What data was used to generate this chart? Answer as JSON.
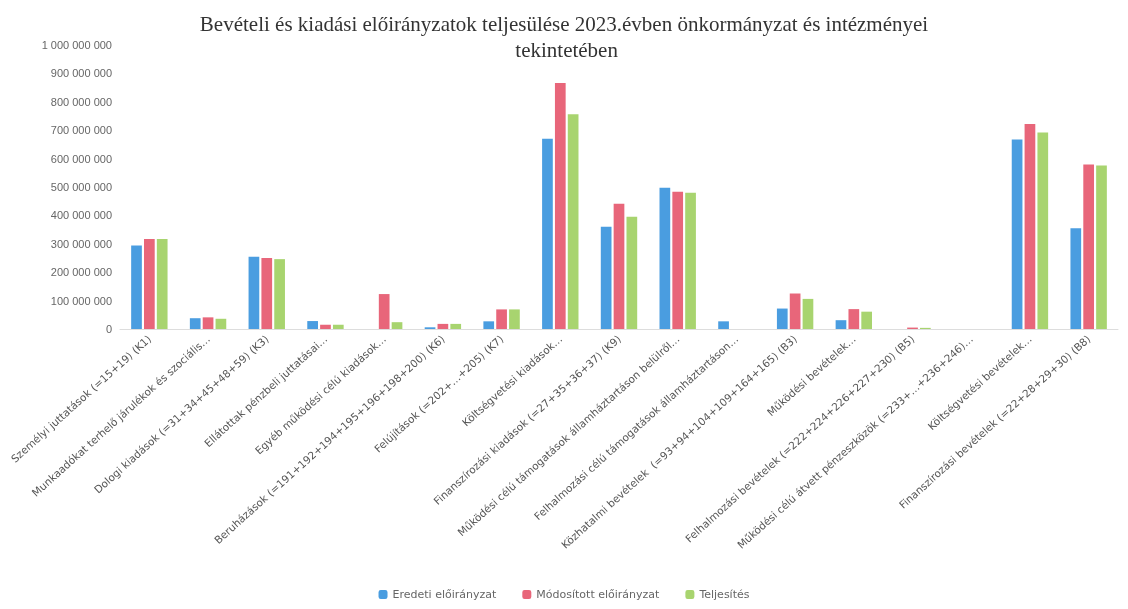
{
  "chart_data": {
    "type": "bar",
    "title": "Bevételi és kiadási előirányzatok teljesülése 2023.évben önkormányzat és intézményei tekintetében",
    "categories": [
      "Személyi juttatások (=15+19) (K1)",
      "Munkaadókat terhelő járulékok és szociális…",
      "Dologi kiadások (=31+34+45+48+59) (K3)",
      "Ellátottak pénzbeli juttatásai…",
      "Egyéb működési célú kiadások…",
      "Beruházások (=191+192+194+195+196+198+200) (K6)",
      "Felújítások (=202+…+205) (K7)",
      "Költségvetési kiadások…",
      "Finanszírozási kiadások (=27+35+36+37) (K9)",
      "Működési célú támogatások államháztartáson belülről…",
      "Felhalmozási célú támogatások államháztartáson…",
      "Közhatalmi bevételek  (=93+94+104+109+164+165) (B3)",
      "Működési bevételek…",
      "Felhalmozási bevételek (=222+224+226+227+230) (B5)",
      "Működési célú átvett pénzeszközök (=233+…+236+246)…",
      "Költségvetési bevételek…",
      "Finanszírozási bevételek (=22+28+29+30) (B8)"
    ],
    "series": [
      {
        "name": "Eredeti előirányzat",
        "color": "#4a9de0",
        "values": [
          294000000,
          38000000,
          254000000,
          28000000,
          0,
          6000000,
          27000000,
          670000000,
          360000000,
          497000000,
          27000000,
          72000000,
          31000000,
          0,
          0,
          667000000,
          355000000
        ]
      },
      {
        "name": "Módosított előirányzat",
        "color": "#e8667a",
        "values": [
          317000000,
          41000000,
          250000000,
          15000000,
          123000000,
          18000000,
          69000000,
          866000000,
          441000000,
          483000000,
          0,
          125000000,
          70000000,
          5000000,
          0,
          722000000,
          579000000
        ]
      },
      {
        "name": "Teljesítés",
        "color": "#a8d46f",
        "values": [
          317000000,
          36000000,
          246000000,
          15000000,
          24000000,
          18000000,
          69000000,
          756000000,
          395000000,
          480000000,
          0,
          106000000,
          61000000,
          4000000,
          0,
          692000000,
          576000000
        ]
      }
    ],
    "ylim": [
      0,
      1000000000
    ],
    "yticks": [
      {
        "value": 0,
        "label": "0"
      },
      {
        "value": 100000000,
        "label": "100 000 000"
      },
      {
        "value": 200000000,
        "label": "200 000 000"
      },
      {
        "value": 300000000,
        "label": "300 000 000"
      },
      {
        "value": 400000000,
        "label": "400 000 000"
      },
      {
        "value": 500000000,
        "label": "500 000 000"
      },
      {
        "value": 600000000,
        "label": "600 000 000"
      },
      {
        "value": 700000000,
        "label": "700 000 000"
      },
      {
        "value": 800000000,
        "label": "800 000 000"
      },
      {
        "value": 900000000,
        "label": "900 000 000"
      },
      {
        "value": 1000000000,
        "label": "1 000 000 000"
      }
    ],
    "grid": false,
    "legend": "bottom"
  }
}
